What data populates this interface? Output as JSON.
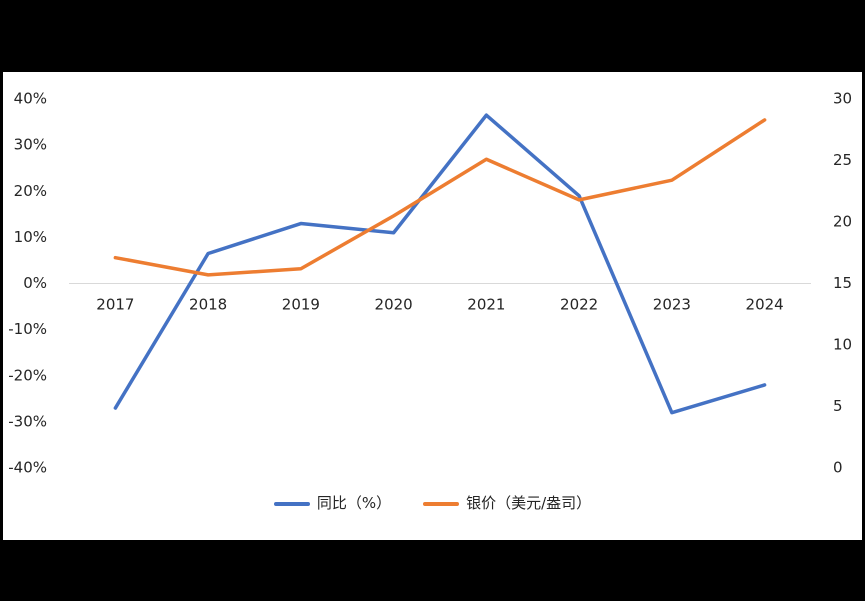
{
  "colors": {
    "background": "#000000",
    "panel": "#FFFFFF",
    "axis_text": "#262626",
    "zero_line": "#D9D9D9",
    "series1": "#4472C4",
    "series2": "#ED7D31"
  },
  "chart_data": {
    "type": "line",
    "categories": [
      "2017",
      "2018",
      "2019",
      "2020",
      "2021",
      "2022",
      "2023",
      "2024"
    ],
    "series": [
      {
        "name": "同比（%）",
        "axis": "left",
        "color": "#4472C4",
        "values": [
          -27,
          6.5,
          13,
          11,
          36.5,
          19,
          -28,
          -22
        ]
      },
      {
        "name": "银价（美元/盎司）",
        "axis": "right",
        "color": "#ED7D31",
        "values": [
          17.1,
          15.7,
          16.2,
          20.5,
          25.1,
          21.8,
          23.4,
          28.3
        ]
      }
    ],
    "left_axis": {
      "min": -40,
      "max": 40,
      "step": 10,
      "ticks": [
        "40%",
        "30%",
        "20%",
        "10%",
        "0%",
        "-10%",
        "-20%",
        "-30%",
        "-40%"
      ]
    },
    "right_axis": {
      "min": 0,
      "max": 30,
      "step": 5,
      "ticks": [
        "30",
        "25",
        "20",
        "15",
        "10",
        "5",
        "0"
      ]
    },
    "grid": "zero-line-only",
    "legend_position": "bottom"
  }
}
